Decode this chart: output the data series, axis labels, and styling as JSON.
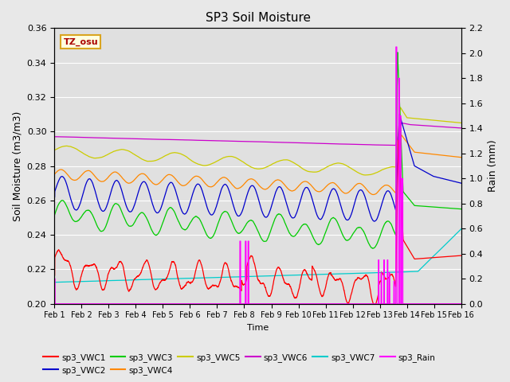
{
  "title": "SP3 Soil Moisture",
  "ylabel_left": "Soil Moisture (m3/m3)",
  "ylabel_right": "Rain (mm)",
  "xlabel": "Time",
  "timezone_label": "TZ_osu",
  "ylim_left": [
    0.2,
    0.36
  ],
  "ylim_right": [
    0.0,
    2.2
  ],
  "n_days": 15,
  "n_points": 4320,
  "series_colors": {
    "sp3_VWC1": "#ff0000",
    "sp3_VWC2": "#0000cc",
    "sp3_VWC3": "#00cc00",
    "sp3_VWC4": "#ff8800",
    "sp3_VWC5": "#cccc00",
    "sp3_VWC6": "#cc00cc",
    "sp3_VWC7": "#00cccc",
    "sp3_Rain": "#ff00ff"
  },
  "background_color": "#e8e8e8",
  "plot_bg_color": "#e0e0e0",
  "xtick_labels": [
    "Feb 1",
    "Feb 2",
    "Feb 3",
    "Feb 4",
    "Feb 5",
    "Feb 6",
    "Feb 7",
    "Feb 8",
    "Feb 9",
    "Feb 10",
    "Feb 11",
    "Feb 12",
    "Feb 13",
    "Feb 14",
    "Feb 15",
    "Feb 16"
  ],
  "xtick_positions": [
    0,
    1,
    2,
    3,
    4,
    5,
    6,
    7,
    8,
    9,
    10,
    11,
    12,
    13,
    14,
    15
  ],
  "yticks_left": [
    0.2,
    0.22,
    0.24,
    0.26,
    0.28,
    0.3,
    0.32,
    0.34,
    0.36
  ],
  "yticks_right": [
    0.0,
    0.2,
    0.4,
    0.6,
    0.8,
    1.0,
    1.2,
    1.4,
    1.6,
    1.8,
    2.0,
    2.2
  ]
}
